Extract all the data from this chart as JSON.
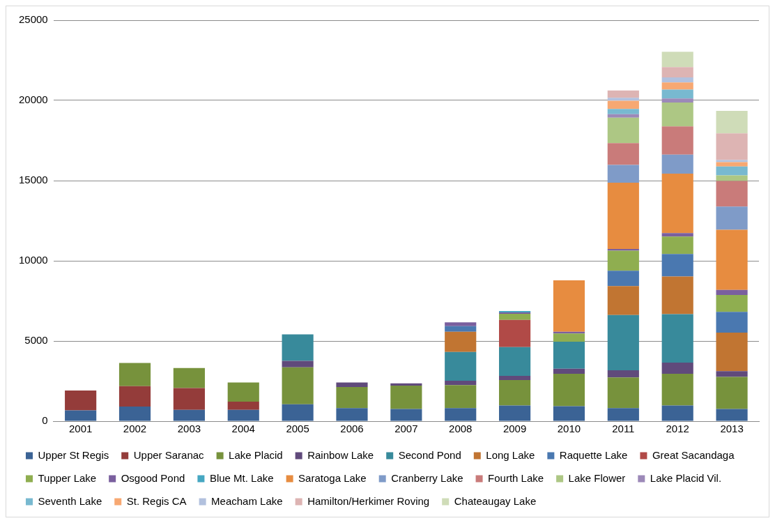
{
  "chart_data": {
    "type": "bar",
    "stacked": true,
    "grid": "y",
    "legend": "bottom",
    "categories": [
      "2001",
      "2002",
      "2003",
      "2004",
      "2005",
      "2006",
      "2007",
      "2008",
      "2009",
      "2010",
      "2011",
      "2012",
      "2013"
    ],
    "ylim": [
      0,
      25000
    ],
    "yticks": [
      0,
      5000,
      10000,
      15000,
      20000,
      25000
    ],
    "series": [
      {
        "name": "Upper St Regis",
        "color": "#3b6395",
        "values": [
          670,
          910,
          710,
          710,
          1050,
          820,
          760,
          820,
          980,
          930,
          820,
          980,
          760
        ]
      },
      {
        "name": "Upper Saranac",
        "color": "#943c3a",
        "values": [
          1240,
          1270,
          1360,
          510,
          null,
          null,
          null,
          null,
          null,
          null,
          null,
          null,
          null
        ]
      },
      {
        "name": "Lake Placid",
        "color": "#77923c",
        "values": [
          null,
          1450,
          1240,
          1190,
          2310,
          1310,
          1460,
          1430,
          1580,
          2030,
          1910,
          1980,
          2000
        ]
      },
      {
        "name": "Rainbow Lake",
        "color": "#604a7b",
        "values": [
          null,
          null,
          null,
          null,
          400,
          280,
          140,
          270,
          270,
          310,
          440,
          690,
          360
        ]
      },
      {
        "name": "Second Pond",
        "color": "#388a9b",
        "values": [
          null,
          null,
          null,
          null,
          1650,
          null,
          null,
          1790,
          1790,
          1690,
          3450,
          3020,
          null
        ]
      },
      {
        "name": "Long Lake",
        "color": "#c17532",
        "values": [
          null,
          null,
          null,
          null,
          null,
          null,
          null,
          1270,
          null,
          null,
          1800,
          2350,
          2400
        ]
      },
      {
        "name": "Raquette Lake",
        "color": "#4a78b0",
        "values": [
          null,
          null,
          null,
          null,
          null,
          null,
          null,
          340,
          null,
          null,
          960,
          1400,
          1290
        ]
      },
      {
        "name": "Great Sacandaga",
        "color": "#b14a47",
        "values": [
          null,
          null,
          null,
          null,
          null,
          null,
          null,
          null,
          1700,
          null,
          null,
          null,
          null
        ]
      },
      {
        "name": "Tupper Lake",
        "color": "#8fae50",
        "values": [
          null,
          null,
          null,
          null,
          null,
          null,
          null,
          null,
          380,
          510,
          1250,
          1090,
          1060
        ]
      },
      {
        "name": "Osgood Pond",
        "color": "#7a5f9e",
        "values": [
          null,
          null,
          null,
          null,
          null,
          null,
          null,
          240,
          80,
          110,
          110,
          220,
          310
        ]
      },
      {
        "name": "Blue Mt. Lake",
        "color": "#46a7c2",
        "values": [
          null,
          null,
          null,
          null,
          null,
          null,
          null,
          null,
          90,
          null,
          null,
          null,
          null
        ]
      },
      {
        "name": "Saratoga Lake",
        "color": "#e78c40",
        "values": [
          null,
          null,
          null,
          null,
          null,
          null,
          null,
          null,
          null,
          3200,
          4130,
          3710,
          3750
        ]
      },
      {
        "name": "Cranberry Lake",
        "color": "#7f9bc8",
        "values": [
          null,
          null,
          null,
          null,
          null,
          null,
          null,
          null,
          null,
          null,
          1110,
          1180,
          1450
        ]
      },
      {
        "name": "Fourth Lake",
        "color": "#c97b7a",
        "values": [
          null,
          null,
          null,
          null,
          null,
          null,
          null,
          null,
          null,
          null,
          1360,
          1760,
          1600
        ]
      },
      {
        "name": "Lake Flower",
        "color": "#adc784",
        "values": [
          null,
          null,
          null,
          null,
          null,
          null,
          null,
          null,
          null,
          null,
          1580,
          1490,
          350
        ]
      },
      {
        "name": "Lake Placid Vil.",
        "color": "#9c89b8",
        "values": [
          null,
          null,
          null,
          null,
          null,
          null,
          null,
          null,
          null,
          null,
          220,
          250,
          null
        ]
      },
      {
        "name": "Seventh Lake",
        "color": "#78b9d0",
        "values": [
          null,
          null,
          null,
          null,
          null,
          null,
          null,
          null,
          null,
          null,
          330,
          550,
          550
        ]
      },
      {
        "name": "St. Regis CA",
        "color": "#f7a872",
        "values": [
          null,
          null,
          null,
          null,
          null,
          null,
          null,
          null,
          null,
          null,
          510,
          450,
          270
        ]
      },
      {
        "name": "Meacham Lake",
        "color": "#b2c1de",
        "values": [
          null,
          null,
          null,
          null,
          null,
          null,
          null,
          null,
          null,
          null,
          180,
          310,
          130
        ]
      },
      {
        "name": "Hamilton/Herkimer Roving",
        "color": "#ddb4b3",
        "values": [
          null,
          null,
          null,
          null,
          null,
          null,
          null,
          null,
          null,
          null,
          460,
          650,
          1670
        ]
      },
      {
        "name": "Chateaugay Lake",
        "color": "#cfdcb8",
        "values": [
          null,
          null,
          null,
          null,
          null,
          null,
          null,
          null,
          null,
          null,
          null,
          950,
          1400
        ]
      }
    ]
  }
}
